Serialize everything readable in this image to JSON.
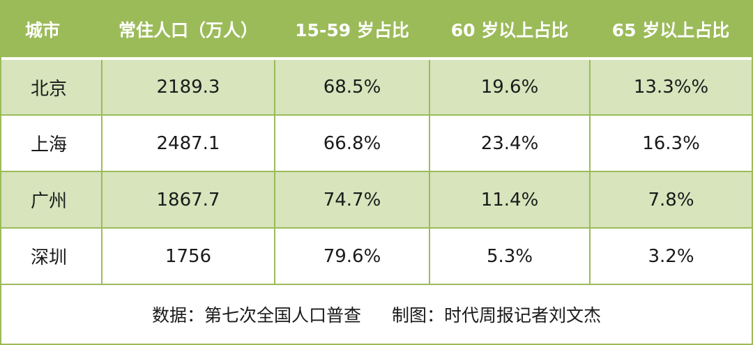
{
  "colors": {
    "header_bg": "#9bbb59",
    "header_text": "#ffffff",
    "shaded_row": "#d7e4bc",
    "grid_line": "#9bbb59"
  },
  "table": {
    "headers": [
      "城市",
      "常住人口（万人）",
      "15-59 岁占比",
      "60 岁以上占比",
      "65 岁以上占比"
    ],
    "rows": [
      [
        "北京",
        "2189.3",
        "68.5%",
        "19.6%",
        "13.3%%"
      ],
      [
        "上海",
        "2487.1",
        "66.8%",
        "23.4%",
        "16.3%"
      ],
      [
        "广州",
        "1867.7",
        "74.7%",
        "11.4%",
        "7.8%"
      ],
      [
        "深圳",
        "1756",
        "79.6%",
        "5.3%",
        "3.2%"
      ]
    ]
  },
  "footer": {
    "source": "数据：第七次全国人口普查",
    "credit": "制图：时代周报记者刘文杰"
  }
}
